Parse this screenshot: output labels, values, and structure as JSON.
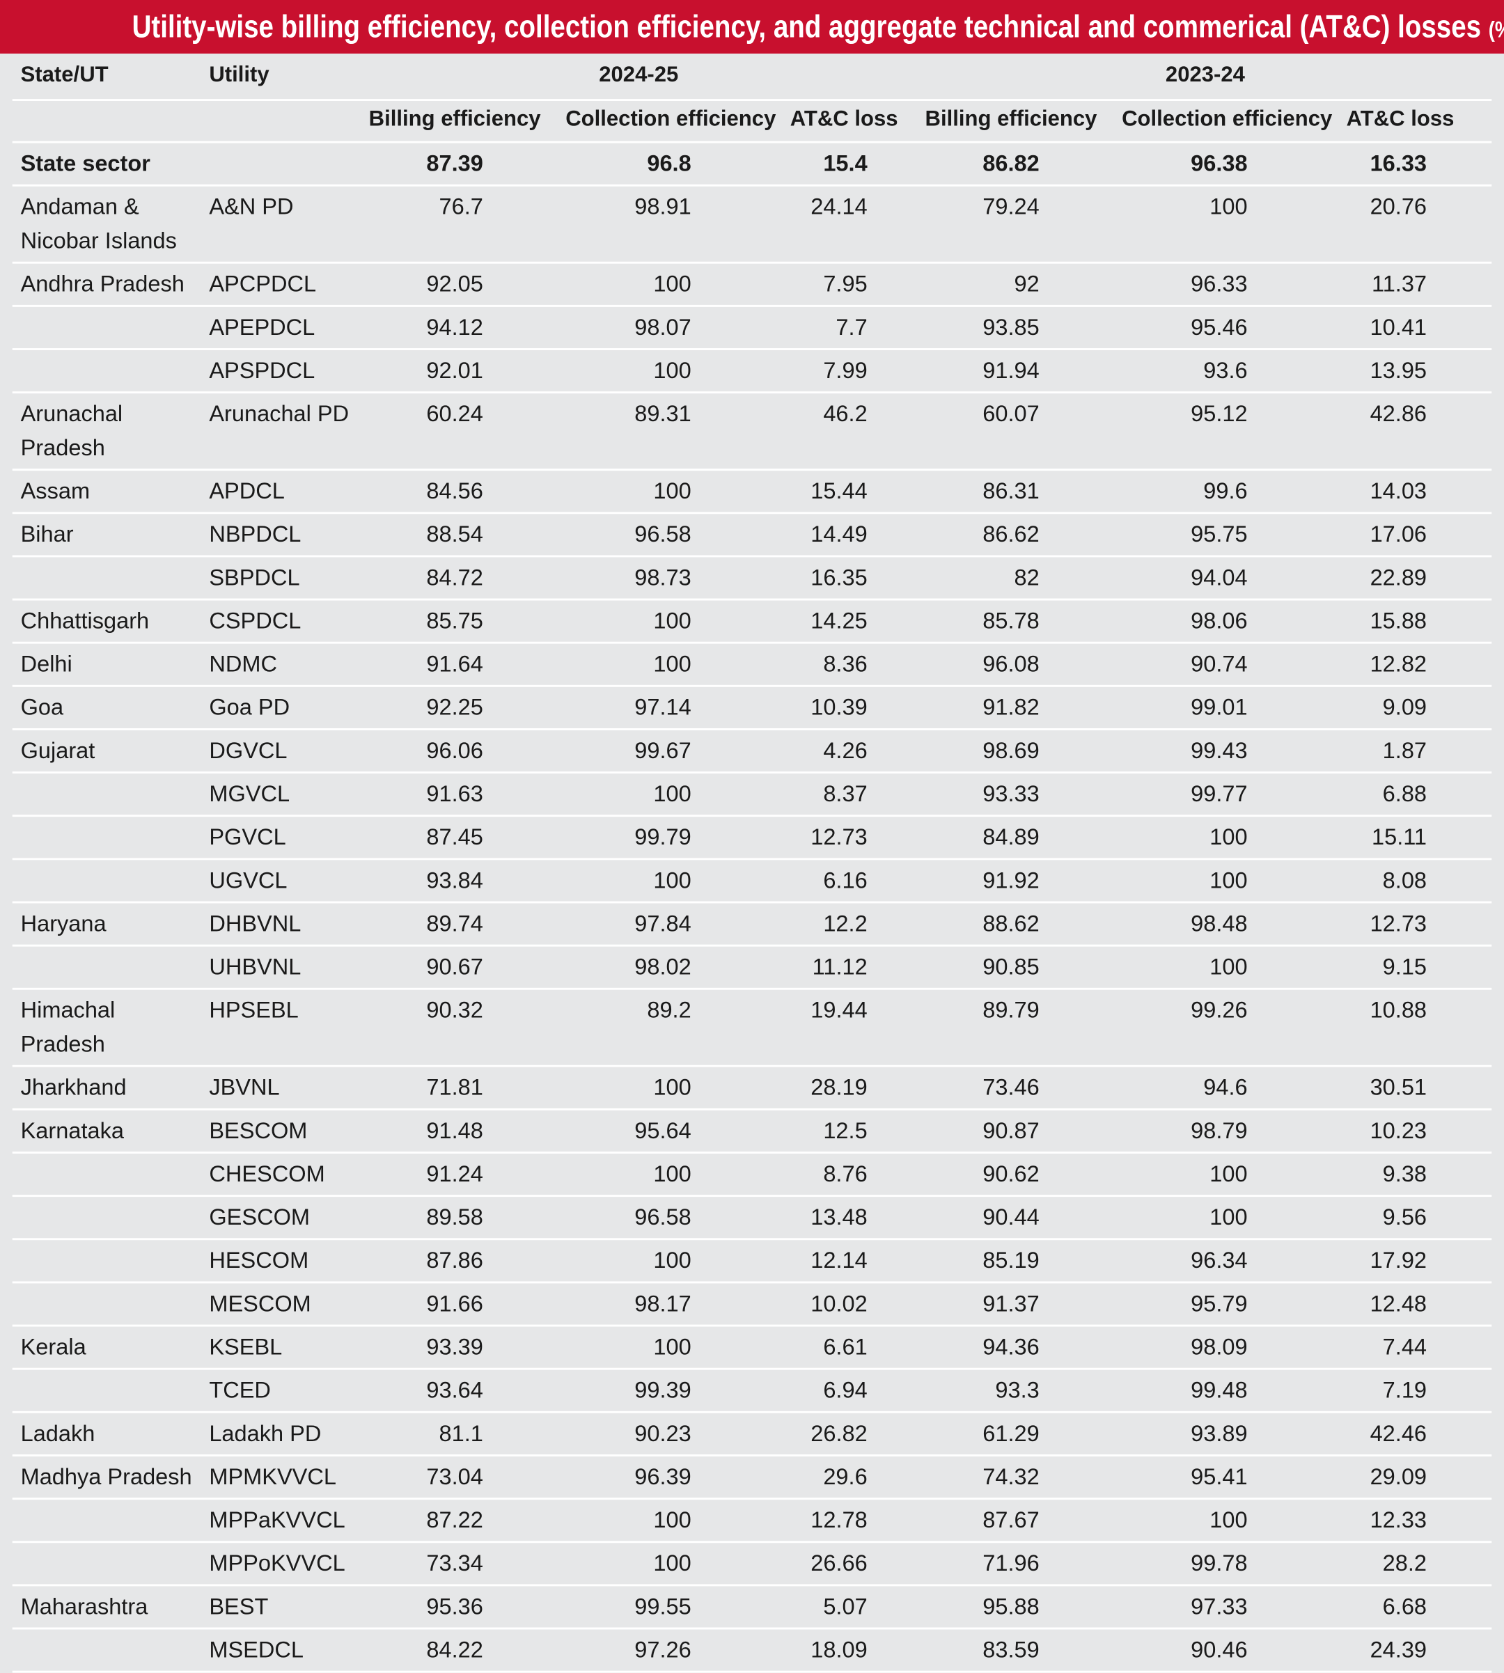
{
  "title": "Utility-wise billing efficiency, collection efficiency, and aggregate technical and commerical (AT&C) losses",
  "title_unit": "(%)",
  "table": {
    "header": {
      "state": "State/UT",
      "utility": "Utility",
      "years": [
        "2024-25",
        "2023-24"
      ],
      "subheaders": [
        "Billing efficiency",
        "Collection efficiency",
        "AT&C loss",
        "Billing efficiency",
        "Collection efficiency",
        "AT&C loss"
      ]
    },
    "rows": [
      [
        "State sector",
        null,
        87.39,
        96.8,
        15.4,
        86.82,
        96.38,
        16.33
      ],
      [
        "Andaman & Nicobar Islands",
        "A&N PD",
        76.7,
        98.91,
        24.14,
        79.24,
        100,
        20.76
      ],
      [
        "Andhra Pradesh",
        "APCPDCL",
        92.05,
        100,
        7.95,
        92,
        96.33,
        11.37
      ],
      [
        null,
        "APEPDCL",
        94.12,
        98.07,
        7.7,
        93.85,
        95.46,
        10.41
      ],
      [
        null,
        "APSPDCL",
        92.01,
        100,
        7.99,
        91.94,
        93.6,
        13.95
      ],
      [
        "Arunachal Pradesh",
        "Arunachal PD",
        60.24,
        89.31,
        46.2,
        60.07,
        95.12,
        42.86
      ],
      [
        "Assam",
        "APDCL",
        84.56,
        100,
        15.44,
        86.31,
        99.6,
        14.03
      ],
      [
        "Bihar",
        "NBPDCL",
        88.54,
        96.58,
        14.49,
        86.62,
        95.75,
        17.06
      ],
      [
        null,
        "SBPDCL",
        84.72,
        98.73,
        16.35,
        82,
        94.04,
        22.89
      ],
      [
        "Chhattisgarh",
        "CSPDCL",
        85.75,
        100,
        14.25,
        85.78,
        98.06,
        15.88
      ],
      [
        "Delhi",
        "NDMC",
        91.64,
        100,
        8.36,
        96.08,
        90.74,
        12.82
      ],
      [
        "Goa",
        "Goa PD",
        92.25,
        97.14,
        10.39,
        91.82,
        99.01,
        9.09
      ],
      [
        "Gujarat",
        "DGVCL",
        96.06,
        99.67,
        4.26,
        98.69,
        99.43,
        1.87
      ],
      [
        null,
        "MGVCL",
        91.63,
        100,
        8.37,
        93.33,
        99.77,
        6.88
      ],
      [
        null,
        "PGVCL",
        87.45,
        99.79,
        12.73,
        84.89,
        100,
        15.11
      ],
      [
        null,
        "UGVCL",
        93.84,
        100,
        6.16,
        91.92,
        100,
        8.08
      ],
      [
        "Haryana",
        "DHBVNL",
        89.74,
        97.84,
        12.2,
        88.62,
        98.48,
        12.73
      ],
      [
        null,
        "UHBVNL",
        90.67,
        98.02,
        11.12,
        90.85,
        100,
        9.15
      ],
      [
        "Himachal Pradesh",
        "HPSEBL",
        90.32,
        89.2,
        19.44,
        89.79,
        99.26,
        10.88
      ],
      [
        "Jharkhand",
        "JBVNL",
        71.81,
        100,
        28.19,
        73.46,
        94.6,
        30.51
      ],
      [
        "Karnataka",
        "BESCOM",
        91.48,
        95.64,
        12.5,
        90.87,
        98.79,
        10.23
      ],
      [
        null,
        "CHESCOM",
        91.24,
        100,
        8.76,
        90.62,
        100,
        9.38
      ],
      [
        null,
        "GESCOM",
        89.58,
        96.58,
        13.48,
        90.44,
        100,
        9.56
      ],
      [
        null,
        "HESCOM",
        87.86,
        100,
        12.14,
        85.19,
        96.34,
        17.92
      ],
      [
        null,
        "MESCOM",
        91.66,
        98.17,
        10.02,
        91.37,
        95.79,
        12.48
      ],
      [
        "Kerala",
        "KSEBL",
        93.39,
        100,
        6.61,
        94.36,
        98.09,
        7.44
      ],
      [
        null,
        "TCED",
        93.64,
        99.39,
        6.94,
        93.3,
        99.48,
        7.19
      ],
      [
        "Ladakh",
        "Ladakh PD",
        81.1,
        90.23,
        26.82,
        61.29,
        93.89,
        42.46
      ],
      [
        "Madhya Pradesh",
        "MPMKVVCL",
        73.04,
        96.39,
        29.6,
        74.32,
        95.41,
        29.09
      ],
      [
        null,
        "MPPaKVVCL",
        87.22,
        100,
        12.78,
        87.67,
        100,
        12.33
      ],
      [
        null,
        "MPPoKVVCL",
        73.34,
        100,
        26.66,
        71.96,
        99.78,
        28.2
      ],
      [
        "Maharashtra",
        "BEST",
        95.36,
        99.55,
        5.07,
        95.88,
        97.33,
        6.68
      ],
      [
        null,
        "MSEDCL",
        84.22,
        97.26,
        18.09,
        83.59,
        90.46,
        24.39
      ]
    ]
  }
}
